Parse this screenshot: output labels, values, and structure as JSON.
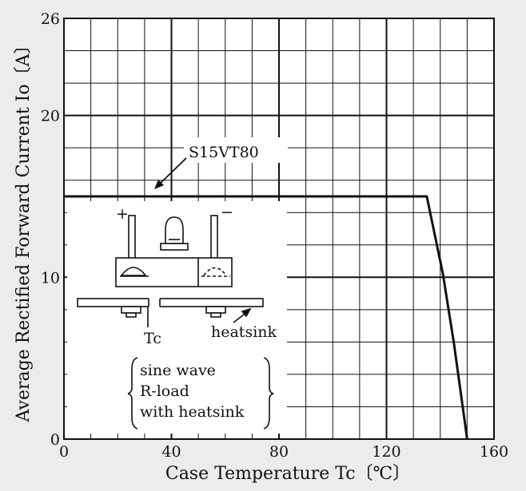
{
  "chart_data": {
    "type": "line",
    "title": "",
    "xlabel": "Case Temperature Tc〔℃〕",
    "ylabel": "Average Rectified Forward Current Io〔A〕",
    "xlim": [
      0,
      160
    ],
    "ylim": [
      0,
      26
    ],
    "x_ticks": [
      0,
      40,
      80,
      120,
      160
    ],
    "y_ticks": [
      0,
      10,
      20,
      26
    ],
    "x_tick_labels": [
      "0",
      "40",
      "80",
      "120",
      "160"
    ],
    "y_tick_labels": [
      "0",
      "10",
      "20",
      "26"
    ],
    "x_minor_step": 10,
    "y_minor_step": 2,
    "grid": true,
    "series": [
      {
        "name": "S15VT80",
        "x": [
          0,
          135,
          141,
          145,
          150
        ],
        "y": [
          15,
          15,
          10.2,
          6,
          0
        ]
      }
    ],
    "annotations": {
      "series_label": "S15VT80",
      "plus": "+",
      "minus": "−",
      "tc_label": "Tc",
      "heatsink_label": "heatsink",
      "conditions": [
        "sine wave",
        "R-load",
        "with heatsink"
      ]
    },
    "colors": {
      "background": "#ececec",
      "plot": "#ffffff",
      "ink": "#111111"
    }
  }
}
